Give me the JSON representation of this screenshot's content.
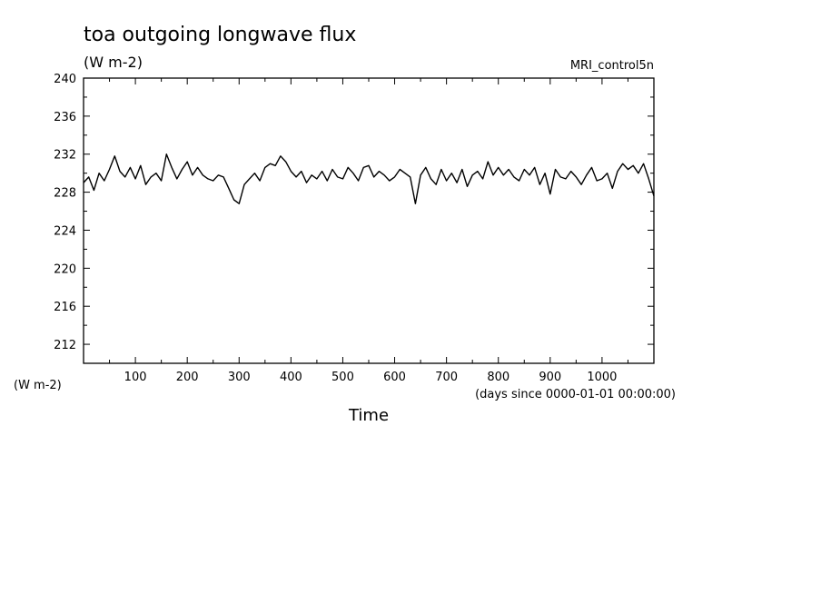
{
  "chart_data": {
    "type": "line",
    "title": "toa outgoing longwave flux",
    "subtitle": "(W m-2)",
    "model_label": "MRI_control5n",
    "ylabel": "(W m-2)",
    "xlabel": "Time",
    "x_units": "(days since 0000-01-01 00:00:00)",
    "xlim": [
      0,
      1100
    ],
    "ylim": [
      210,
      240
    ],
    "x_ticks": [
      100,
      200,
      300,
      400,
      500,
      600,
      700,
      800,
      900,
      1000
    ],
    "y_ticks": [
      212,
      216,
      220,
      224,
      228,
      232,
      236,
      240
    ],
    "grid": false,
    "series": [
      {
        "x": [
          0,
          10,
          20,
          30,
          40,
          50,
          60,
          70,
          80,
          90,
          100,
          110,
          120,
          130,
          140,
          150,
          160,
          170,
          180,
          190,
          200,
          210,
          220,
          230,
          240,
          250,
          260,
          270,
          280,
          290,
          300,
          310,
          320,
          330,
          340,
          350,
          360,
          370,
          380,
          390,
          400,
          410,
          420,
          430,
          440,
          450,
          460,
          470,
          480,
          490,
          500,
          510,
          520,
          530,
          540,
          550,
          560,
          570,
          580,
          590,
          600,
          610,
          620,
          630,
          640,
          650,
          660,
          670,
          680,
          690,
          700,
          710,
          720,
          730,
          740,
          750,
          760,
          770,
          780,
          790,
          800,
          810,
          820,
          830,
          840,
          850,
          860,
          870,
          880,
          890,
          900,
          910,
          920,
          930,
          940,
          950,
          960,
          970,
          980,
          990,
          1000,
          1010,
          1020,
          1030,
          1040,
          1050,
          1060,
          1070,
          1080,
          1090,
          1100
        ],
        "values": [
          229.0,
          229.6,
          228.2,
          230.0,
          229.2,
          230.4,
          231.8,
          230.2,
          229.6,
          230.6,
          229.4,
          230.8,
          228.8,
          229.6,
          230.0,
          229.2,
          232.0,
          230.6,
          229.4,
          230.4,
          231.2,
          229.8,
          230.6,
          229.8,
          229.4,
          229.2,
          229.8,
          229.6,
          228.4,
          227.2,
          226.8,
          228.8,
          229.4,
          230.0,
          229.2,
          230.6,
          231.0,
          230.8,
          231.8,
          231.2,
          230.2,
          229.6,
          230.2,
          229.0,
          229.8,
          229.4,
          230.2,
          229.2,
          230.4,
          229.6,
          229.4,
          230.6,
          230.0,
          229.2,
          230.6,
          230.8,
          229.6,
          230.2,
          229.8,
          229.2,
          229.6,
          230.4,
          230.0,
          229.6,
          226.8,
          229.8,
          230.6,
          229.4,
          228.8,
          230.4,
          229.2,
          230.0,
          229.0,
          230.4,
          228.6,
          229.8,
          230.2,
          229.4,
          231.2,
          229.8,
          230.6,
          229.8,
          230.4,
          229.6,
          229.2,
          230.4,
          229.8,
          230.6,
          228.8,
          230.0,
          227.8,
          230.4,
          229.6,
          229.4,
          230.2,
          229.6,
          228.8,
          229.8,
          230.6,
          229.2,
          229.4,
          230.0,
          228.4,
          230.2,
          231.0,
          230.4,
          230.8,
          230.0,
          231.0,
          229.4,
          227.6
        ]
      }
    ]
  }
}
